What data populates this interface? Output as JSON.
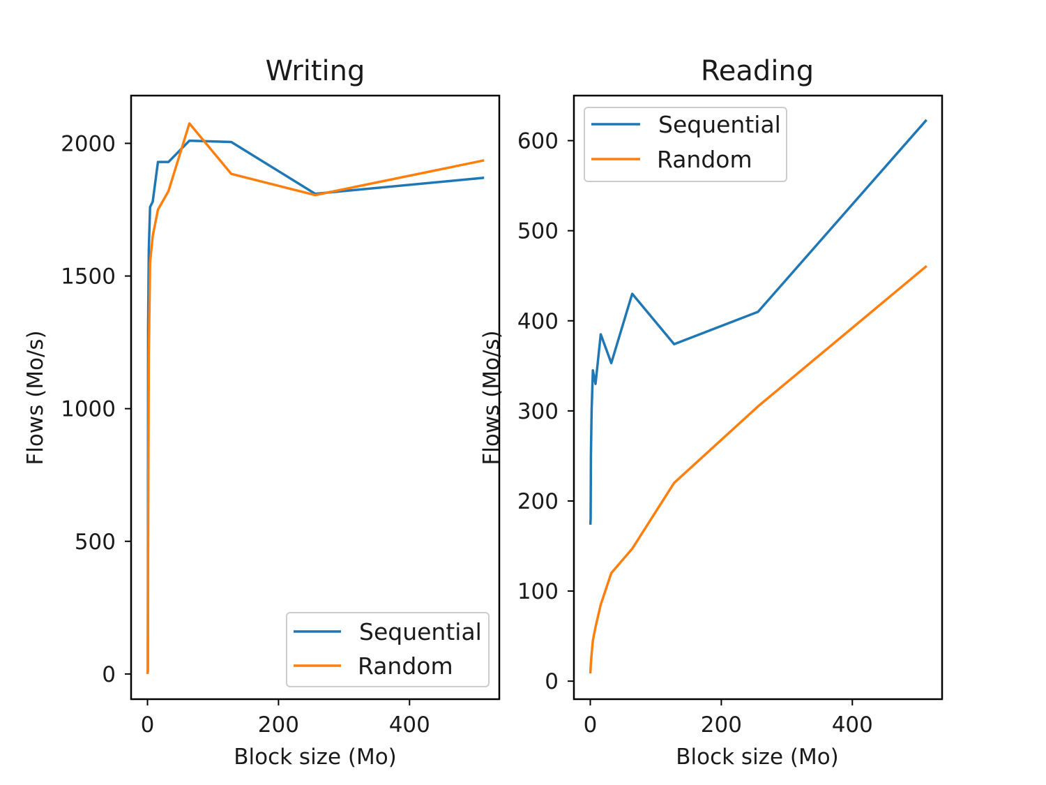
{
  "chart_data": [
    {
      "type": "line",
      "title": "Writing",
      "xlabel": "Block size (Mo)",
      "ylabel": "Flows (Mo/s)",
      "xlim": [
        -25,
        537
      ],
      "ylim": [
        -95,
        2180
      ],
      "xticks": [
        0,
        200,
        400
      ],
      "yticks": [
        0,
        500,
        1000,
        1500,
        2000
      ],
      "legend": "lower-right",
      "series": [
        {
          "name": "Sequential",
          "color": "#1f77b4",
          "x": [
            0.25,
            0.5,
            1,
            2,
            4,
            8,
            16,
            32,
            64,
            128,
            256,
            512
          ],
          "y": [
            5,
            10,
            1300,
            1600,
            1760,
            1780,
            1930,
            1930,
            2010,
            2005,
            1810,
            1870
          ]
        },
        {
          "name": "Random",
          "color": "#ff7f0e",
          "x": [
            0.25,
            0.5,
            1,
            2,
            4,
            8,
            16,
            32,
            64,
            128,
            256,
            512
          ],
          "y": [
            5,
            8,
            500,
            1200,
            1550,
            1650,
            1750,
            1820,
            2075,
            1885,
            1805,
            1935
          ]
        }
      ]
    },
    {
      "type": "line",
      "title": "Reading",
      "xlabel": "Block size (Mo)",
      "ylabel": "Flows (Mo/s)",
      "xlim": [
        -25,
        537
      ],
      "ylim": [
        -20,
        650
      ],
      "xticks": [
        0,
        200,
        400
      ],
      "yticks": [
        0,
        100,
        200,
        300,
        400,
        500,
        600
      ],
      "legend": "upper-left",
      "series": [
        {
          "name": "Sequential",
          "color": "#1f77b4",
          "x": [
            0.25,
            0.5,
            1,
            2,
            4,
            8,
            16,
            32,
            64,
            128,
            256,
            512
          ],
          "y": [
            175,
            180,
            250,
            300,
            345,
            330,
            385,
            353,
            430,
            374,
            410,
            622
          ]
        },
        {
          "name": "Random",
          "color": "#ff7f0e",
          "x": [
            0.25,
            0.5,
            1,
            2,
            4,
            8,
            16,
            32,
            64,
            128,
            256,
            512
          ],
          "y": [
            10,
            15,
            20,
            30,
            45,
            60,
            85,
            120,
            147,
            220,
            305,
            460
          ]
        }
      ]
    }
  ]
}
